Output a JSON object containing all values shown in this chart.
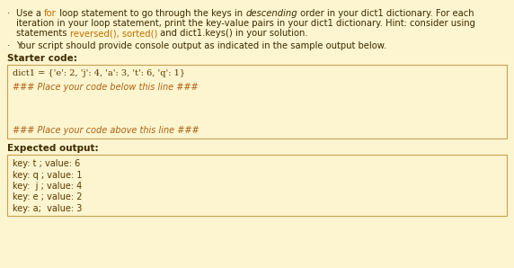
{
  "bg_color": "#fdf5d0",
  "box_bg": "#fdf5d0",
  "box_border": "#c8a050",
  "text_color": "#3d2b00",
  "code_color": "#5a3800",
  "orange_color": "#c07000",
  "italic_comment_color": "#b06010",
  "starter_label": "Starter code:",
  "code_line1": "dict1 = {'e': 2, 'j': 4, 'a': 3, 't': 6, 'q': 1}",
  "code_line2": "### Place your code below this line ###",
  "code_line3": "### Place your code above this line ###",
  "expected_label": "Expected output:",
  "output_lines": [
    "key: t ; value: 6",
    "key: q ; value: 1",
    "key:  j ; value: 4",
    "key: e ; value: 2",
    "key: a;  value: 3"
  ],
  "fs_body": 7.2,
  "fs_code": 7.0,
  "fs_label": 7.5
}
